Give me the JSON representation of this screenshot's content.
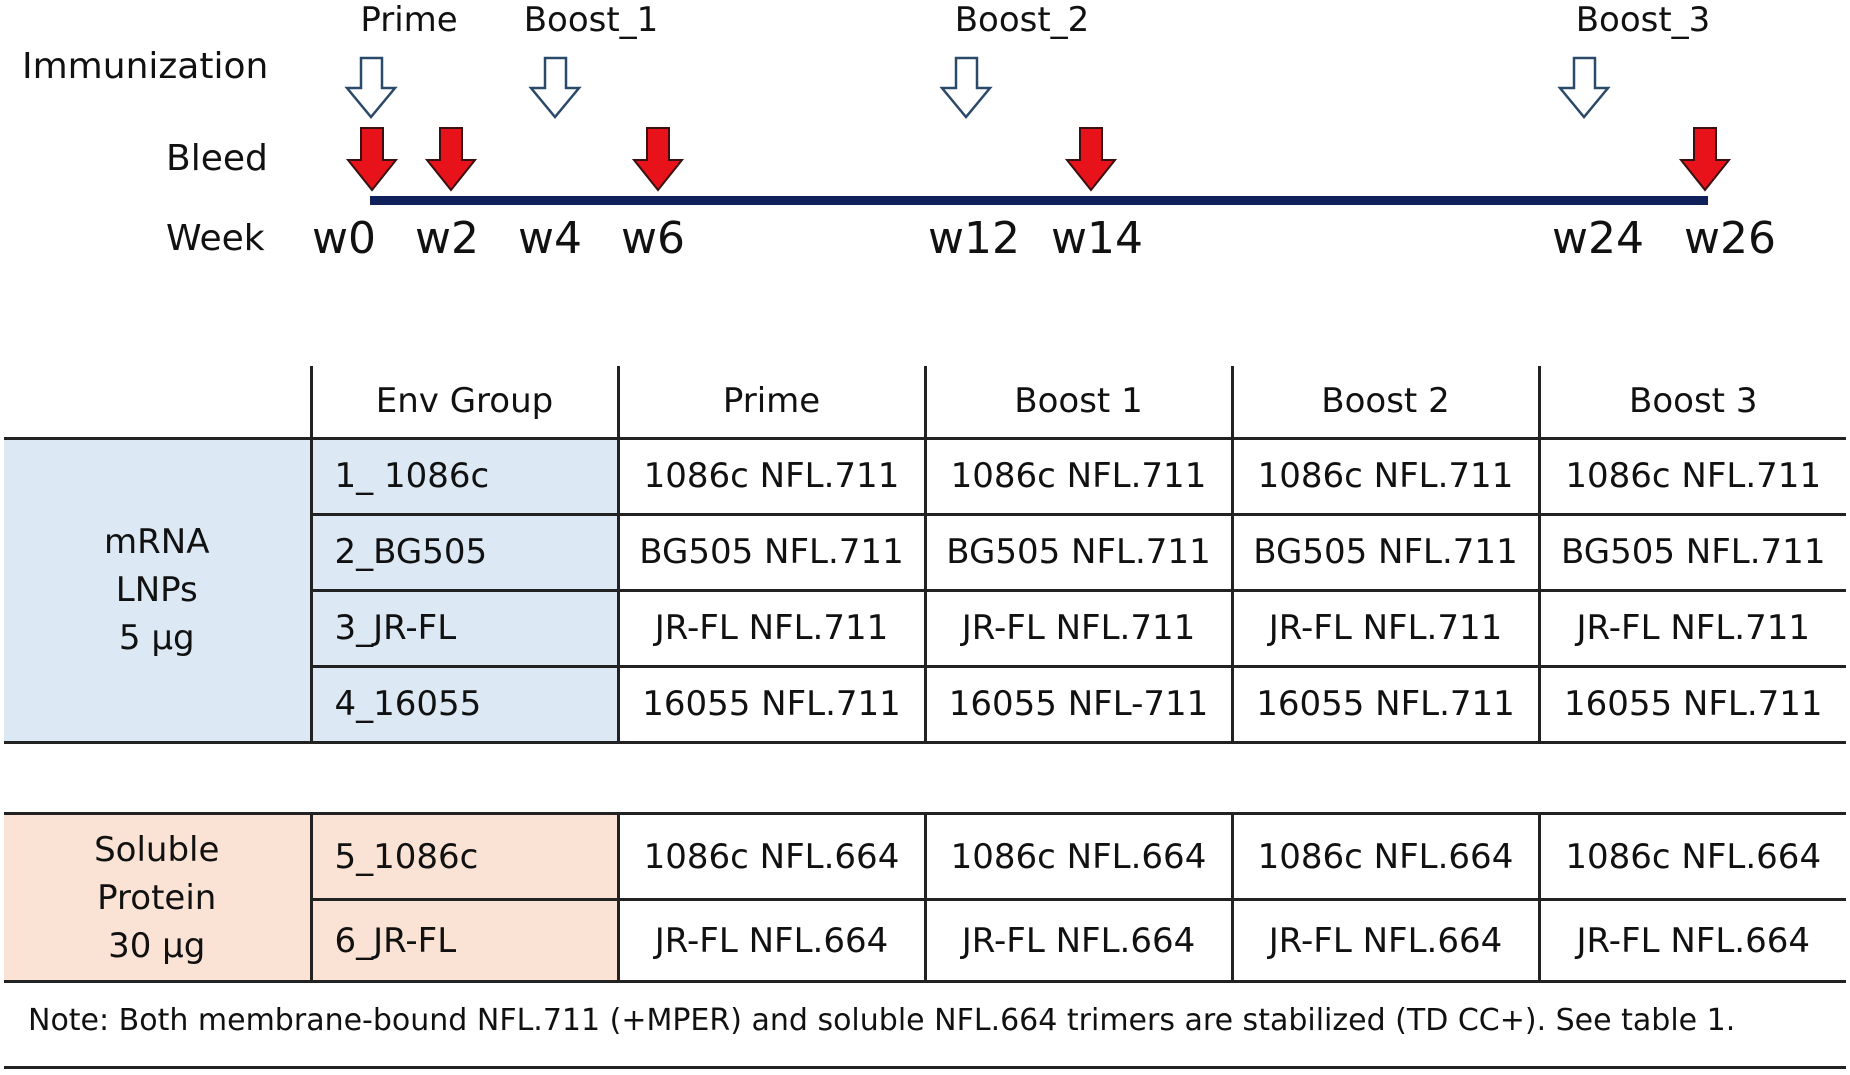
{
  "timeline": {
    "row_labels": {
      "immunization": "Immunization",
      "bleed": "Bleed",
      "week": "Week"
    },
    "immunizations": [
      "Prime",
      "Boost_1",
      "Boost_2",
      "Boost_3"
    ],
    "immunization_weeks": [
      "w0",
      "w4",
      "w12",
      "w24"
    ],
    "bleed_weeks": [
      "w0",
      "w2",
      "w6",
      "w14",
      "w26"
    ],
    "weeks": [
      "w0",
      "w2",
      "w4",
      "w6",
      "w12",
      "w14",
      "w24",
      "w26"
    ],
    "colors": {
      "bleed_arrow": "#e8121b",
      "immunization_arrow": "#ffffff",
      "axis": "#10205a"
    }
  },
  "table": {
    "headers": [
      "Env Group",
      "Prime",
      "Boost 1",
      "Boost 2",
      "Boost 3"
    ],
    "mrna_block": {
      "label_lines": [
        "mRNA",
        "LNPs",
        "5 µg"
      ],
      "color": "#dce9f4",
      "rows": [
        {
          "group": "1_ 1086c",
          "cells": [
            "1086c NFL.711",
            "1086c NFL.711",
            "1086c NFL.711",
            "1086c NFL.711"
          ]
        },
        {
          "group": "2_BG505",
          "cells": [
            "BG505 NFL.711",
            "BG505 NFL.711",
            "BG505 NFL.711",
            "BG505 NFL.711"
          ]
        },
        {
          "group": "3_JR-FL",
          "cells": [
            "JR-FL NFL.711",
            "JR-FL NFL.711",
            "JR-FL NFL.711",
            "JR-FL NFL.711"
          ]
        },
        {
          "group": "4_16055",
          "cells": [
            "16055 NFL.711",
            "16055 NFL-711",
            "16055 NFL.711",
            "16055 NFL.711"
          ]
        }
      ]
    },
    "protein_block": {
      "label_lines": [
        "Soluble",
        "Protein",
        "30 µg"
      ],
      "color": "#fae3d4",
      "rows": [
        {
          "group": "5_1086c",
          "cells": [
            "1086c NFL.664",
            "1086c NFL.664",
            "1086c NFL.664",
            "1086c NFL.664"
          ]
        },
        {
          "group": "6_JR-FL",
          "cells": [
            "JR-FL NFL.664",
            "JR-FL NFL.664",
            "JR-FL NFL.664",
            "JR-FL NFL.664"
          ]
        }
      ]
    }
  },
  "note": "Note: Both membrane-bound NFL.711 (+MPER) and soluble NFL.664 trimers are stabilized (TD CC+). See table 1."
}
